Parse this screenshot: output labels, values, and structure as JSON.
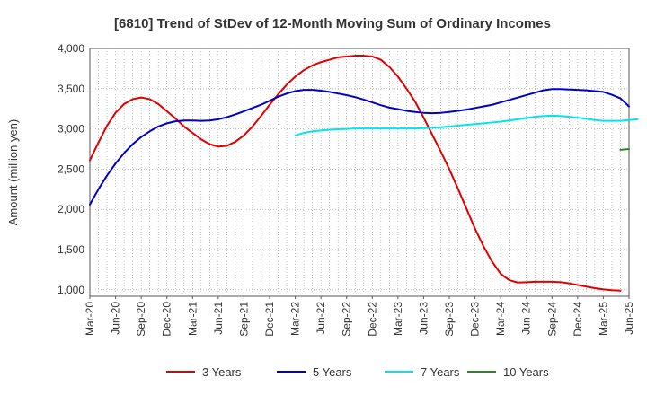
{
  "chart_data": {
    "type": "line",
    "title": "[6810]  Trend of StDev of 12-Month Moving Sum of Ordinary Incomes",
    "xlabel": "",
    "ylabel": "Amount (million yen)",
    "ylim": [
      920,
      4000
    ],
    "y_ticks": [
      1000,
      1500,
      2000,
      2500,
      3000,
      3500,
      4000
    ],
    "y_tick_labels": [
      "1,000",
      "1,500",
      "2,000",
      "2,500",
      "3,000",
      "3,500",
      "4,000"
    ],
    "x_tick_labels": [
      "Mar-20",
      "Jun-20",
      "Sep-20",
      "Dec-20",
      "Mar-21",
      "Jun-21",
      "Sep-21",
      "Dec-21",
      "Mar-22",
      "Jun-22",
      "Sep-22",
      "Dec-22",
      "Mar-23",
      "Jun-23",
      "Sep-23",
      "Dec-23",
      "Mar-24",
      "Jun-24",
      "Sep-24",
      "Dec-24",
      "Mar-25",
      "Jun-25"
    ],
    "x_start_index": 0,
    "x_end_index": 63,
    "grid": true,
    "legend_position": "bottom",
    "series": [
      {
        "name": "3 Years",
        "color": "#e00000",
        "start_index": 0,
        "values": [
          2610,
          2830,
          3040,
          3200,
          3310,
          3370,
          3390,
          3370,
          3310,
          3220,
          3130,
          3030,
          2950,
          2870,
          2810,
          2780,
          2790,
          2840,
          2920,
          3030,
          3160,
          3300,
          3430,
          3550,
          3650,
          3730,
          3790,
          3830,
          3860,
          3890,
          3900,
          3910,
          3910,
          3900,
          3860,
          3770,
          3650,
          3500,
          3340,
          3140,
          2930,
          2720,
          2500,
          2260,
          2010,
          1760,
          1540,
          1350,
          1200,
          1120,
          1090,
          1095,
          1100,
          1100,
          1100,
          1095,
          1080,
          1060,
          1040,
          1020,
          1005,
          995,
          990
        ]
      },
      {
        "name": "5 Years",
        "color": "#0000cc",
        "start_index": 0,
        "values": [
          2060,
          2250,
          2420,
          2570,
          2700,
          2810,
          2900,
          2970,
          3030,
          3070,
          3095,
          3105,
          3105,
          3100,
          3105,
          3120,
          3145,
          3180,
          3220,
          3260,
          3300,
          3350,
          3400,
          3440,
          3470,
          3485,
          3485,
          3475,
          3460,
          3440,
          3420,
          3395,
          3365,
          3330,
          3295,
          3265,
          3245,
          3225,
          3210,
          3200,
          3195,
          3200,
          3210,
          3225,
          3240,
          3260,
          3280,
          3300,
          3330,
          3360,
          3390,
          3420,
          3450,
          3480,
          3495,
          3495,
          3490,
          3485,
          3480,
          3470,
          3460,
          3425,
          3380,
          3280
        ]
      },
      {
        "name": "7 Years",
        "color": "#00e5ee",
        "start_index": 24,
        "values": [
          2920,
          2950,
          2970,
          2980,
          2990,
          2995,
          3000,
          3005,
          3005,
          3005,
          3005,
          3005,
          3005,
          3005,
          3005,
          3010,
          3015,
          3020,
          3030,
          3040,
          3050,
          3060,
          3070,
          3080,
          3090,
          3105,
          3120,
          3135,
          3150,
          3160,
          3165,
          3160,
          3150,
          3140,
          3125,
          3110,
          3100,
          3100,
          3100,
          3110,
          3120
        ]
      },
      {
        "name": "10 Years",
        "color": "#228b22",
        "start_index": 62,
        "values": [
          2740,
          2750
        ]
      }
    ]
  }
}
